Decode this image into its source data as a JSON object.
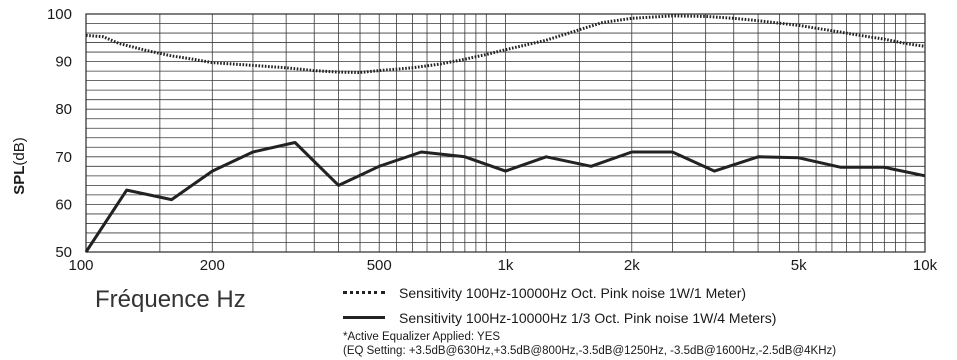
{
  "chart_data": {
    "type": "line",
    "xscale": "log",
    "xlim": [
      100,
      10000
    ],
    "ylim": [
      50,
      100
    ],
    "yticks": [
      50,
      60,
      70,
      80,
      90,
      100
    ],
    "xticks": [
      {
        "value": 100,
        "label": "100"
      },
      {
        "value": 200,
        "label": "200"
      },
      {
        "value": 500,
        "label": "500"
      },
      {
        "value": 1000,
        "label": "1k"
      },
      {
        "value": 2000,
        "label": "2k"
      },
      {
        "value": 5000,
        "label": "5k"
      },
      {
        "value": 10000,
        "label": "10k"
      }
    ],
    "ylabel_bold": "SPL",
    "ylabel_unit": "(dB)",
    "xlabel": "Fréquence Hz",
    "grid": true,
    "series": [
      {
        "name": "Sensitivity 100Hz-10000Hz Oct. Pink noise 1W/1 Meter)",
        "style": "dotted",
        "color": "#222222",
        "points": [
          [
            100,
            95.5
          ],
          [
            110,
            95.2
          ],
          [
            120,
            93.8
          ],
          [
            140,
            92.3
          ],
          [
            160,
            91.2
          ],
          [
            180,
            90.5
          ],
          [
            200,
            89.8
          ],
          [
            250,
            89.2
          ],
          [
            300,
            88.7
          ],
          [
            350,
            88.1
          ],
          [
            400,
            87.8
          ],
          [
            450,
            87.7
          ],
          [
            500,
            88.1
          ],
          [
            600,
            88.7
          ],
          [
            700,
            89.5
          ],
          [
            800,
            90.5
          ],
          [
            900,
            91.5
          ],
          [
            1000,
            92.5
          ],
          [
            1250,
            94.5
          ],
          [
            1500,
            96.7
          ],
          [
            1700,
            98.2
          ],
          [
            2000,
            99.1
          ],
          [
            2500,
            99.6
          ],
          [
            3000,
            99.5
          ],
          [
            3500,
            99.1
          ],
          [
            4000,
            98.6
          ],
          [
            5000,
            97.6
          ],
          [
            6000,
            96.5
          ],
          [
            7000,
            95.5
          ],
          [
            8000,
            94.7
          ],
          [
            9000,
            93.8
          ],
          [
            10000,
            93.2
          ]
        ]
      },
      {
        "name": "Sensitivity 100Hz-10000Hz 1/3 Oct. Pink noise 1W/4 Meters)",
        "style": "solid",
        "color": "#222222",
        "points": [
          [
            100,
            50
          ],
          [
            125,
            63
          ],
          [
            160,
            61
          ],
          [
            200,
            67
          ],
          [
            250,
            71
          ],
          [
            315,
            73
          ],
          [
            400,
            64
          ],
          [
            500,
            68
          ],
          [
            630,
            71
          ],
          [
            800,
            70
          ],
          [
            1000,
            67
          ],
          [
            1250,
            70
          ],
          [
            1600,
            68
          ],
          [
            2000,
            71
          ],
          [
            2500,
            71
          ],
          [
            3150,
            67
          ],
          [
            4000,
            70
          ],
          [
            5000,
            69.8
          ],
          [
            6300,
            67.8
          ],
          [
            8000,
            67.8
          ],
          [
            10000,
            66
          ]
        ]
      }
    ]
  },
  "notes": {
    "line1": "*Active Equalizer Applied: YES",
    "line2": "(EQ Setting: +3.5dB@630Hz,+3.5dB@800Hz,-3.5dB@1250Hz, -3.5dB@1600Hz,-2.5dB@4KHz)"
  }
}
